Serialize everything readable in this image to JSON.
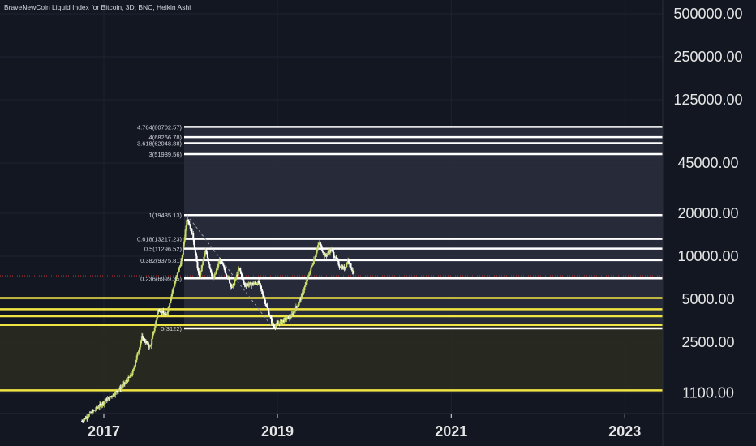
{
  "title": "BraveNewCoin Liquid Index for Bitcoin, 3D, BNC, Heikin Ashi",
  "colors": {
    "background": "#131722",
    "grid": "#1f2330",
    "white_line": "#ffffff",
    "yellow_line": "#f0e442",
    "candle_up": "#c8d96a",
    "candle_down": "#ffffff",
    "fib_shade": "#2a2e3d",
    "support_shade": "#2a2b21",
    "axis_text": "#e6e6e6"
  },
  "chart_data": {
    "type": "candlestick",
    "scale": "log",
    "ylim": [
      800,
      700000
    ],
    "yticks": [
      {
        "value": 500000,
        "label": "500000.00"
      },
      {
        "value": 250000,
        "label": "250000.00"
      },
      {
        "value": 125000,
        "label": "125000.00"
      },
      {
        "value": 45000,
        "label": "45000.00"
      },
      {
        "value": 20000,
        "label": "20000.00"
      },
      {
        "value": 10000,
        "label": "10000.00"
      },
      {
        "value": 5000,
        "label": "5000.00"
      },
      {
        "value": 2500,
        "label": "2500.00"
      },
      {
        "value": 1100,
        "label": "1100.00"
      }
    ],
    "xticks": [
      "2017",
      "2019",
      "2021",
      "2023"
    ],
    "fib_levels": [
      {
        "label": "4.764(80702.57)",
        "value": 80702.57
      },
      {
        "label": "4(68266.78)",
        "value": 68266.78
      },
      {
        "label": "3.618(62048.88)",
        "value": 62048.88
      },
      {
        "label": "3(51989.56)",
        "value": 51989.56
      },
      {
        "label": "1(19435.13)",
        "value": 19435.13
      },
      {
        "label": "0.618(13217.23)",
        "value": 13217.23
      },
      {
        "label": "0.5(11296.52)",
        "value": 11296.52
      },
      {
        "label": "0.382(9375.81)",
        "value": 9375.81
      },
      {
        "label": "0.236(6999.35)",
        "value": 6999.35
      },
      {
        "label": "0(3122)",
        "value": 3122
      }
    ],
    "yellow_levels": [
      5100,
      4250,
      3800,
      3300,
      1150
    ],
    "price_path": [
      {
        "date": "2016-10-01",
        "price": 700
      },
      {
        "date": "2016-12-15",
        "price": 900
      },
      {
        "date": "2017-02-01",
        "price": 1050
      },
      {
        "date": "2017-03-15",
        "price": 1200
      },
      {
        "date": "2017-05-01",
        "price": 1500
      },
      {
        "date": "2017-06-10",
        "price": 2700
      },
      {
        "date": "2017-07-15",
        "price": 2300
      },
      {
        "date": "2017-08-20",
        "price": 4300
      },
      {
        "date": "2017-09-20",
        "price": 3800
      },
      {
        "date": "2017-10-20",
        "price": 6000
      },
      {
        "date": "2017-11-25",
        "price": 9500
      },
      {
        "date": "2017-12-17",
        "price": 19000
      },
      {
        "date": "2018-01-10",
        "price": 14000
      },
      {
        "date": "2018-02-06",
        "price": 7000
      },
      {
        "date": "2018-03-05",
        "price": 11000
      },
      {
        "date": "2018-04-06",
        "price": 6800
      },
      {
        "date": "2018-05-05",
        "price": 9500
      },
      {
        "date": "2018-06-25",
        "price": 6000
      },
      {
        "date": "2018-07-25",
        "price": 8200
      },
      {
        "date": "2018-08-15",
        "price": 6300
      },
      {
        "date": "2018-10-15",
        "price": 6500
      },
      {
        "date": "2018-11-20",
        "price": 4300
      },
      {
        "date": "2018-12-15",
        "price": 3200
      },
      {
        "date": "2019-01-20",
        "price": 3500
      },
      {
        "date": "2019-03-01",
        "price": 3800
      },
      {
        "date": "2019-04-10",
        "price": 5100
      },
      {
        "date": "2019-05-25",
        "price": 8500
      },
      {
        "date": "2019-06-26",
        "price": 12500
      },
      {
        "date": "2019-07-20",
        "price": 10000
      },
      {
        "date": "2019-08-15",
        "price": 11200
      },
      {
        "date": "2019-09-20",
        "price": 8500
      },
      {
        "date": "2019-10-10",
        "price": 8200
      },
      {
        "date": "2019-10-26",
        "price": 9500
      },
      {
        "date": "2019-11-20",
        "price": 7300
      }
    ]
  }
}
